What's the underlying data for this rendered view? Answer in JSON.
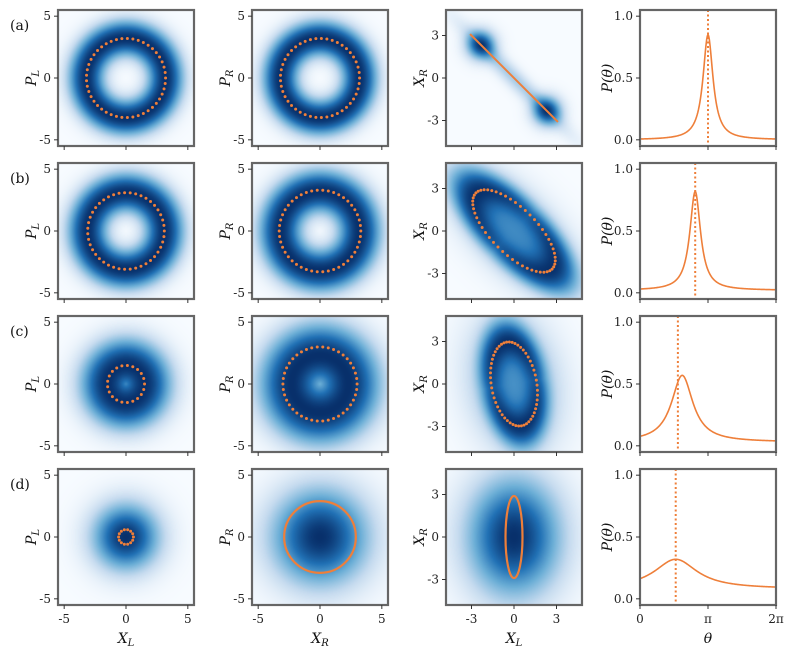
{
  "chart_data": {
    "type": "figure-grid",
    "row_labels": [
      "(a)",
      "(b)",
      "(c)",
      "(d)"
    ],
    "colors": {
      "dots": "#ee7f3a",
      "curve": "#ee7f3a",
      "map_dark": "#08306b",
      "map_light": "#f7fbff",
      "frame": "#666666"
    },
    "column_x_labels": [
      "X_L",
      "X_R",
      "X_L",
      "θ"
    ],
    "row_y_labels": [
      [
        "P_L",
        "P_R",
        "X_R",
        "P(θ)"
      ],
      [
        "P_L",
        "P_R",
        "X_R",
        "P(θ)"
      ],
      [
        "P_L",
        "P_R",
        "X_R",
        "P(θ)"
      ],
      [
        "P_L",
        "P_R",
        "X_R",
        "P(θ)"
      ]
    ],
    "phase_ticks": [
      -5,
      0,
      5
    ],
    "phase_range": [
      -5.5,
      5.5
    ],
    "corr_ticks": [
      -3,
      0,
      3
    ],
    "corr_range": [
      -4.8,
      4.8
    ],
    "prob_ticks": [
      0,
      0.5,
      1.0
    ],
    "prob_tick_labels": [
      "0.0",
      "0.5",
      "1.0"
    ],
    "prob_range": [
      -0.05,
      1.05
    ],
    "theta_ticks": [
      0,
      3.14159,
      6.28318
    ],
    "theta_tick_labels": [
      "0",
      "π",
      "2π"
    ],
    "theta_range": [
      0,
      6.28318
    ],
    "rows": [
      {
        "label": "(a)",
        "left": {
          "ring_radius": 3.2,
          "ring_width": 1.0,
          "dot_radius": 3.2
        },
        "right": {
          "ring_radius": 3.2,
          "ring_width": 1.0,
          "dot_radius": 3.2
        },
        "correlation": {
          "kind": "line",
          "x_start": -3.1,
          "y_start": 3.1,
          "x_end": 3.1,
          "y_end": -3.1,
          "blob_sigma_major": 3.6,
          "blob_sigma_minor": 0.45,
          "angle_deg": -45
        },
        "probability": {
          "peak": 0.85,
          "center": 3.14159,
          "width": 0.28,
          "base": 0.0,
          "marker": 3.14159
        }
      },
      {
        "label": "(b)",
        "left": {
          "ring_radius": 3.1,
          "ring_width": 1.1,
          "dot_radius": 3.1
        },
        "right": {
          "ring_radius": 3.2,
          "ring_width": 1.2,
          "dot_radius": 3.3
        },
        "correlation": {
          "kind": "ellipse",
          "a": 3.8,
          "b": 1.6,
          "angle_deg": -45,
          "blob_sigma_major": 3.4,
          "blob_sigma_minor": 1.6
        },
        "probability": {
          "peak": 0.82,
          "center": 2.55,
          "width": 0.3,
          "base": 0.02,
          "marker": 2.55
        }
      },
      {
        "label": "(c)",
        "left": {
          "ring_radius": 1.5,
          "ring_width": 1.5,
          "dot_radius": 1.5
        },
        "right": {
          "ring_radius": 2.3,
          "ring_width": 1.8,
          "dot_radius": 3.0
        },
        "correlation": {
          "kind": "ellipse",
          "a": 3.0,
          "b": 1.6,
          "angle_deg": -80,
          "blob_sigma_major": 3.0,
          "blob_sigma_minor": 2.0
        },
        "probability": {
          "peak": 0.57,
          "center": 1.95,
          "width": 0.6,
          "base": 0.03,
          "marker": 1.75
        }
      },
      {
        "label": "(d)",
        "left": {
          "ring_radius": 0.0,
          "ring_width": 1.8,
          "dot_radius": 0.6
        },
        "right": {
          "ring_radius": 0.0,
          "ring_width": 2.6,
          "dot_radius": 2.9,
          "solid": true
        },
        "correlation": {
          "kind": "ellipse",
          "a": 2.9,
          "b": 0.6,
          "angle_deg": -90,
          "blob_sigma_major": 2.8,
          "blob_sigma_minor": 2.2,
          "solid": true
        },
        "probability": {
          "peak": 0.32,
          "center": 1.65,
          "width": 1.2,
          "base": 0.08,
          "marker": 1.65
        }
      }
    ]
  }
}
